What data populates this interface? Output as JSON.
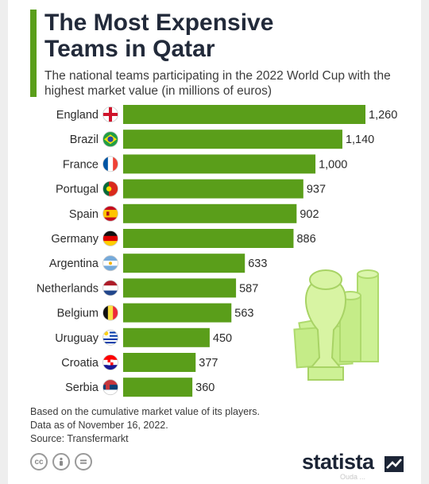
{
  "header": {
    "title_line1": "The Most Expensive",
    "title_line2": "Teams in Qatar",
    "subtitle": "The national teams participating in the 2022 World Cup with the highest market value (in millions of euros)"
  },
  "footer": {
    "note1": "Based on the cumulative market value of its players.",
    "note2": "Data as of November 16, 2022.",
    "source": "Source: Transfermarkt",
    "logo": "statista",
    "watermark": "Ouda ...",
    "icons": [
      "cc-icon",
      "by-icon",
      "nd-icon"
    ]
  },
  "chart_data": {
    "type": "bar",
    "orientation": "horizontal",
    "categories": [
      "England",
      "Brazil",
      "France",
      "Portugal",
      "Spain",
      "Germany",
      "Argentina",
      "Netherlands",
      "Belgium",
      "Uruguay",
      "Croatia",
      "Serbia"
    ],
    "values": [
      1260,
      1140,
      1000,
      937,
      902,
      886,
      633,
      587,
      563,
      450,
      377,
      360
    ],
    "value_labels": [
      "1,260",
      "1,140",
      "1,000",
      "937",
      "902",
      "886",
      "633",
      "587",
      "563",
      "450",
      "377",
      "360"
    ],
    "flag_icons": [
      "flag-england-icon",
      "flag-brazil-icon",
      "flag-france-icon",
      "flag-portugal-icon",
      "flag-spain-icon",
      "flag-germany-icon",
      "flag-argentina-icon",
      "flag-netherlands-icon",
      "flag-belgium-icon",
      "flag-uruguay-icon",
      "flag-croatia-icon",
      "flag-serbia-icon"
    ],
    "bar_color": "#5a9e1a",
    "xlim": [
      0,
      1260
    ],
    "grid": false,
    "legend": "none"
  },
  "illustration": "world-cup-trophy-money-icon"
}
